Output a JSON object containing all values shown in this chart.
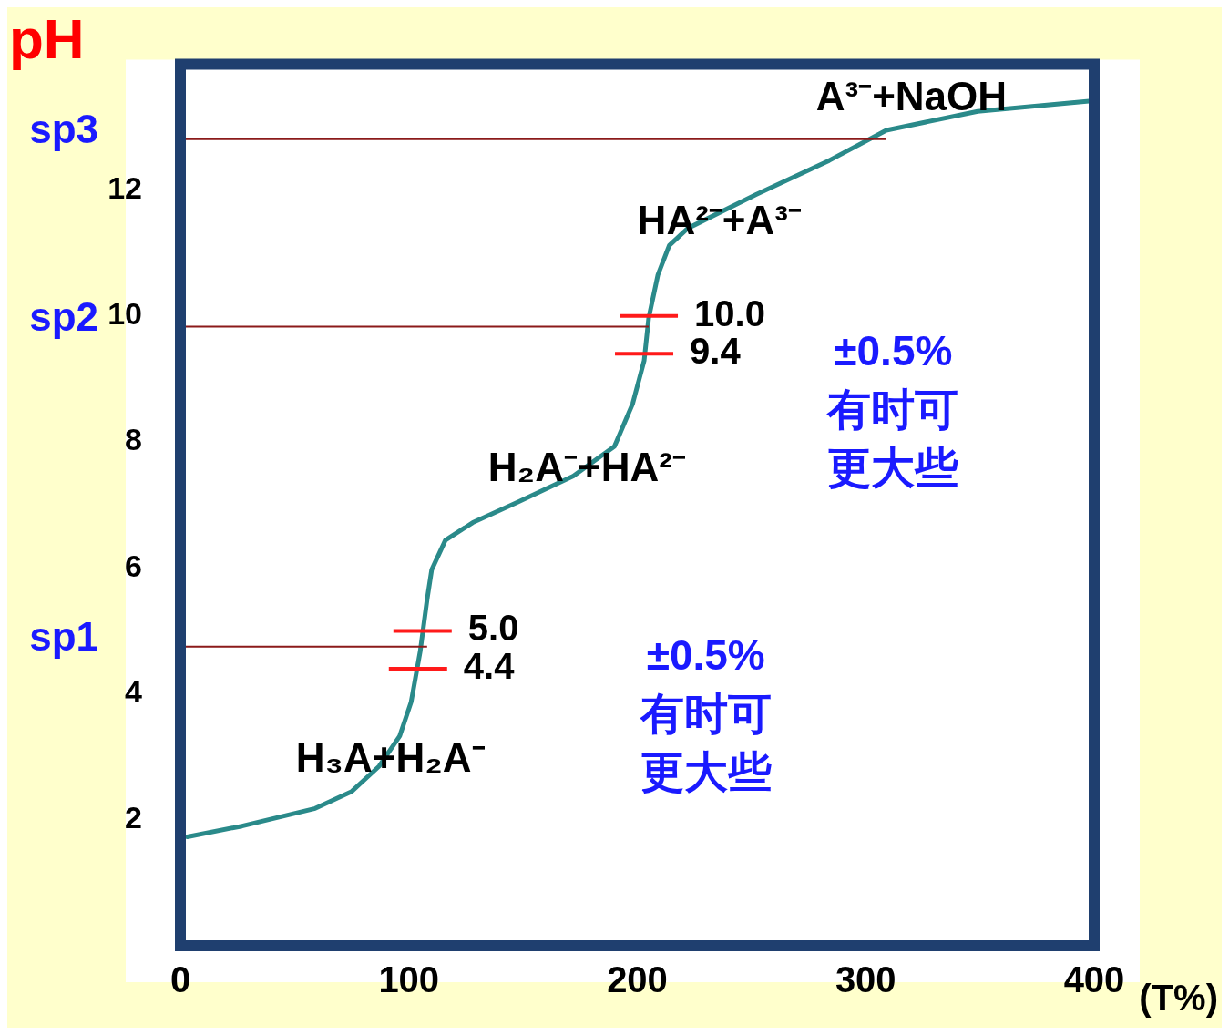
{
  "chart_data": {
    "type": "line",
    "xlabel": "(T%)",
    "ylabel": "pH",
    "x": [
      3,
      27,
      59,
      75,
      87,
      96,
      101,
      105,
      108,
      110,
      116,
      128,
      148,
      172,
      190,
      198,
      203,
      205,
      209,
      214,
      222,
      252,
      284,
      309,
      349,
      400
    ],
    "series": [
      {
        "color": "#2a8a8a",
        "values": [
          1.73,
          1.9,
          2.18,
          2.45,
          2.85,
          3.33,
          3.87,
          4.68,
          5.5,
          5.97,
          6.44,
          6.72,
          7.05,
          7.46,
          7.93,
          8.61,
          9.29,
          9.97,
          10.65,
          11.12,
          11.39,
          11.93,
          12.47,
          12.95,
          13.25,
          13.42
        ]
      }
    ],
    "xlim": [
      0,
      400
    ],
    "xticks": [
      0,
      100,
      200,
      300,
      400
    ],
    "ylim": [
      0,
      14
    ],
    "yticks": [
      2,
      4,
      6,
      8,
      10,
      12
    ],
    "grid": false,
    "legend": false,
    "marker": "none",
    "line_style": "solid",
    "ref_lines": [
      {
        "axis": "y",
        "value": 12.81,
        "label": "sp3",
        "color": "#8b1a1a"
      },
      {
        "axis": "y",
        "value": 9.83,
        "label": "sp2",
        "color": "#8b1a1a"
      },
      {
        "axis": "y",
        "value": 4.75,
        "label": "sp1",
        "color": "#8b1a1a"
      }
    ],
    "annotations": [
      "A³⁻+NaOH",
      "HA²⁻+A³⁻",
      "H₂A⁻+HA²⁻",
      "H₃A+H₂A⁻",
      {
        "text": "10.0",
        "x": 205,
        "y": 10.0
      },
      {
        "text": "9.4",
        "x": 203,
        "y": 9.4
      },
      {
        "text": "5.0",
        "x": 106,
        "y": 5.0
      },
      {
        "text": "4.4",
        "x": 104,
        "y": 4.4
      },
      "±0.5%有时可更大些",
      "±0.5%有时可更大些"
    ]
  }
}
